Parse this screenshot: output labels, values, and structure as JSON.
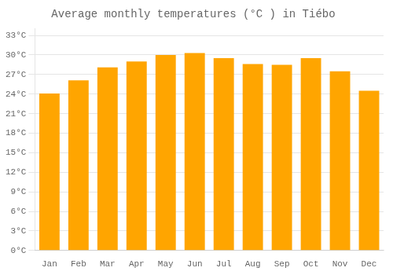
{
  "chart_data": {
    "type": "bar",
    "title": "Average monthly temperatures (°C ) in Tiébo",
    "categories": [
      "Jan",
      "Feb",
      "Mar",
      "Apr",
      "May",
      "Jun",
      "Jul",
      "Aug",
      "Sep",
      "Oct",
      "Nov",
      "Dec"
    ],
    "values": [
      24.1,
      26.1,
      28.1,
      29.0,
      30.0,
      30.3,
      29.5,
      28.6,
      28.5,
      29.5,
      27.5,
      24.5
    ],
    "color": "#FFA500",
    "ylim": [
      0,
      34
    ],
    "yticks": [
      {
        "value": 0,
        "label": "0°C"
      },
      {
        "value": 3,
        "label": "3°C"
      },
      {
        "value": 6,
        "label": "6°C"
      },
      {
        "value": 9,
        "label": "9°C"
      },
      {
        "value": 12,
        "label": "12°C"
      },
      {
        "value": 15,
        "label": "15°C"
      },
      {
        "value": 18,
        "label": "18°C"
      },
      {
        "value": 21,
        "label": "21°C"
      },
      {
        "value": 24,
        "label": "24°C"
      },
      {
        "value": 27,
        "label": "27°C"
      },
      {
        "value": 30,
        "label": "30°C"
      },
      {
        "value": 33,
        "label": "33°C"
      }
    ],
    "grid": true
  }
}
